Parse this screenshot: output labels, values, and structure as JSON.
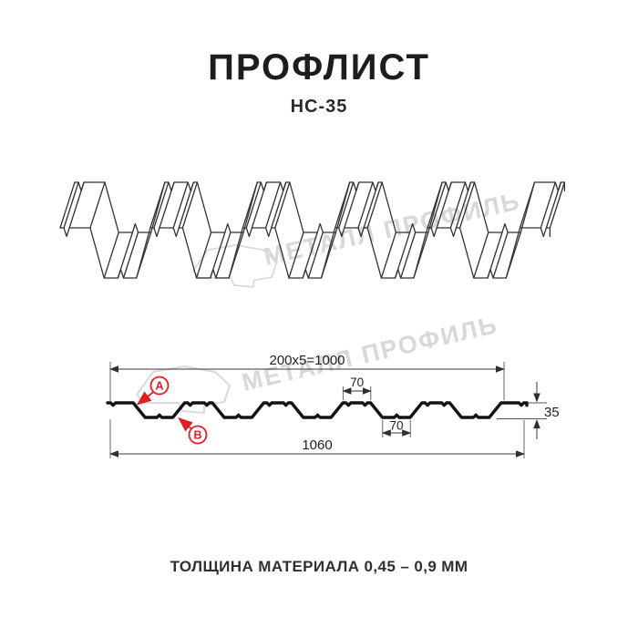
{
  "header": {
    "title": "ПРОФЛИСТ",
    "subtitle": "НС-35"
  },
  "footer": {
    "note": "ТОЛЩИНА МАТЕРИАЛА 0,45 – 0,9 ММ"
  },
  "watermark": {
    "brand": "МЕТАЛЛ ПРОФИЛЬ"
  },
  "drawing": {
    "dim_top": "200x5=1000",
    "dim_rib_top": "70",
    "dim_rib_bottom": "70",
    "dim_total": "1060",
    "dim_height": "35",
    "marker_a": "А",
    "marker_b": "В"
  },
  "colors": {
    "accent_red": "#e01e25",
    "line": "#2f2f2f",
    "watermark_gray": "#d8d8d8"
  }
}
